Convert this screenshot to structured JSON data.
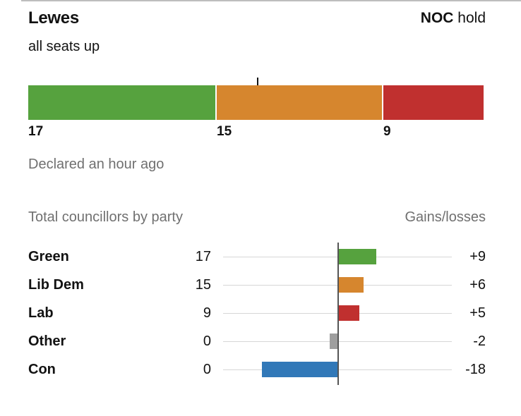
{
  "header": {
    "council": "Lewes",
    "result_party": "NOC",
    "result_word": "hold",
    "subtitle": "all seats up",
    "declared": "Declared an hour ago"
  },
  "table": {
    "left_heading": "Total councillors by party",
    "right_heading": "Gains/losses"
  },
  "chart_data": [
    {
      "type": "bar",
      "orientation": "horizontal-stacked",
      "series": [
        {
          "name": "Green",
          "value": 17,
          "label": "17",
          "color": "#56a23e"
        },
        {
          "name": "Lib Dem",
          "value": 15,
          "label": "15",
          "color": "#d6862e"
        },
        {
          "name": "Lab",
          "value": 9,
          "label": "9",
          "color": "#c0302f"
        }
      ],
      "total_seats": 41,
      "majority_seats": 21
    },
    {
      "type": "bar",
      "orientation": "horizontal-diverging",
      "rows": [
        {
          "party": "Green",
          "seats": "17",
          "change_label": "+9",
          "change": 9,
          "color": "#56a23e"
        },
        {
          "party": "Lib Dem",
          "seats": "15",
          "change_label": "+6",
          "change": 6,
          "color": "#d6862e"
        },
        {
          "party": "Lab",
          "seats": "9",
          "change_label": "+5",
          "change": 5,
          "color": "#c0302f"
        },
        {
          "party": "Other",
          "seats": "0",
          "change_label": "-2",
          "change": -2,
          "color": "#9e9e9e"
        },
        {
          "party": "Con",
          "seats": "0",
          "change_label": "-18",
          "change": -18,
          "color": "#3178b8"
        }
      ],
      "xlim": [
        -26,
        26
      ]
    }
  ]
}
